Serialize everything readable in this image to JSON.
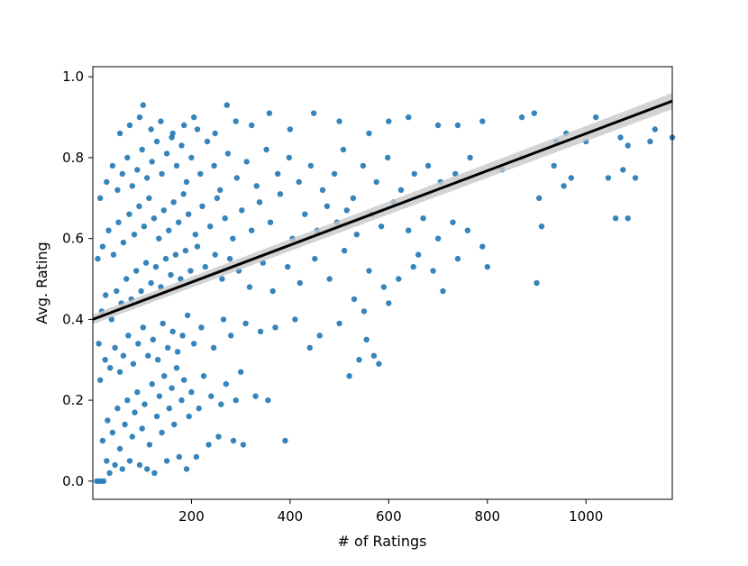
{
  "chart_data": {
    "type": "scatter",
    "title": "",
    "xlabel": "# of Ratings",
    "ylabel": "Avg. Rating",
    "xlim": [
      0,
      1175
    ],
    "ylim": [
      -0.045,
      1.025
    ],
    "xticks": [
      200,
      400,
      600,
      800,
      1000
    ],
    "yticks": [
      0.0,
      0.2,
      0.4,
      0.6,
      0.8,
      1.0
    ],
    "xtick_labels": [
      "200",
      "400",
      "600",
      "800",
      "1000"
    ],
    "ytick_labels": [
      "0.0",
      "0.2",
      "0.4",
      "0.6",
      "0.8",
      "1.0"
    ],
    "grid": false,
    "legend": "none",
    "point_color": "#1f77b4",
    "fit_color": "#000000",
    "ci_color": "#c8c8c8",
    "regression": {
      "x": [
        0,
        1175
      ],
      "y": [
        0.4,
        0.94
      ],
      "ci_half_width": [
        0.012,
        0.02
      ]
    },
    "points": [
      [
        8,
        0.0
      ],
      [
        15,
        0.0
      ],
      [
        22,
        0.0
      ],
      [
        34,
        0.02
      ],
      [
        28,
        0.05
      ],
      [
        45,
        0.04
      ],
      [
        60,
        0.03
      ],
      [
        75,
        0.05
      ],
      [
        95,
        0.04
      ],
      [
        110,
        0.03
      ],
      [
        125,
        0.02
      ],
      [
        150,
        0.05
      ],
      [
        175,
        0.06
      ],
      [
        190,
        0.03
      ],
      [
        210,
        0.06
      ],
      [
        235,
        0.09
      ],
      [
        255,
        0.11
      ],
      [
        285,
        0.1
      ],
      [
        305,
        0.09
      ],
      [
        390,
        0.1
      ],
      [
        20,
        0.1
      ],
      [
        30,
        0.15
      ],
      [
        40,
        0.12
      ],
      [
        50,
        0.18
      ],
      [
        55,
        0.08
      ],
      [
        65,
        0.14
      ],
      [
        70,
        0.2
      ],
      [
        80,
        0.11
      ],
      [
        85,
        0.17
      ],
      [
        90,
        0.22
      ],
      [
        100,
        0.13
      ],
      [
        105,
        0.19
      ],
      [
        115,
        0.09
      ],
      [
        120,
        0.24
      ],
      [
        130,
        0.16
      ],
      [
        135,
        0.21
      ],
      [
        140,
        0.12
      ],
      [
        145,
        0.26
      ],
      [
        155,
        0.18
      ],
      [
        160,
        0.23
      ],
      [
        165,
        0.14
      ],
      [
        170,
        0.28
      ],
      [
        180,
        0.2
      ],
      [
        185,
        0.25
      ],
      [
        195,
        0.16
      ],
      [
        200,
        0.22
      ],
      [
        215,
        0.18
      ],
      [
        225,
        0.26
      ],
      [
        240,
        0.21
      ],
      [
        260,
        0.19
      ],
      [
        270,
        0.24
      ],
      [
        290,
        0.2
      ],
      [
        300,
        0.27
      ],
      [
        330,
        0.21
      ],
      [
        355,
        0.2
      ],
      [
        440,
        0.33
      ],
      [
        520,
        0.26
      ],
      [
        540,
        0.3
      ],
      [
        570,
        0.31
      ],
      [
        580,
        0.29
      ],
      [
        555,
        0.35
      ],
      [
        15,
        0.25
      ],
      [
        25,
        0.3
      ],
      [
        35,
        0.28
      ],
      [
        45,
        0.33
      ],
      [
        55,
        0.27
      ],
      [
        62,
        0.31
      ],
      [
        72,
        0.36
      ],
      [
        82,
        0.29
      ],
      [
        92,
        0.34
      ],
      [
        102,
        0.38
      ],
      [
        112,
        0.31
      ],
      [
        122,
        0.35
      ],
      [
        132,
        0.3
      ],
      [
        142,
        0.39
      ],
      [
        152,
        0.33
      ],
      [
        162,
        0.37
      ],
      [
        172,
        0.32
      ],
      [
        182,
        0.36
      ],
      [
        192,
        0.41
      ],
      [
        205,
        0.34
      ],
      [
        220,
        0.38
      ],
      [
        245,
        0.33
      ],
      [
        265,
        0.4
      ],
      [
        280,
        0.36
      ],
      [
        310,
        0.39
      ],
      [
        340,
        0.37
      ],
      [
        370,
        0.38
      ],
      [
        410,
        0.4
      ],
      [
        460,
        0.36
      ],
      [
        500,
        0.39
      ],
      [
        550,
        0.42
      ],
      [
        600,
        0.44
      ],
      [
        12,
        0.34
      ],
      [
        18,
        0.42
      ],
      [
        26,
        0.46
      ],
      [
        38,
        0.4
      ],
      [
        48,
        0.47
      ],
      [
        58,
        0.44
      ],
      [
        68,
        0.5
      ],
      [
        78,
        0.45
      ],
      [
        88,
        0.52
      ],
      [
        98,
        0.47
      ],
      [
        108,
        0.54
      ],
      [
        118,
        0.49
      ],
      [
        128,
        0.53
      ],
      [
        138,
        0.48
      ],
      [
        148,
        0.55
      ],
      [
        158,
        0.51
      ],
      [
        168,
        0.56
      ],
      [
        178,
        0.5
      ],
      [
        188,
        0.57
      ],
      [
        198,
        0.52
      ],
      [
        212,
        0.58
      ],
      [
        228,
        0.53
      ],
      [
        248,
        0.56
      ],
      [
        262,
        0.5
      ],
      [
        278,
        0.55
      ],
      [
        296,
        0.52
      ],
      [
        318,
        0.48
      ],
      [
        345,
        0.54
      ],
      [
        365,
        0.47
      ],
      [
        395,
        0.53
      ],
      [
        420,
        0.49
      ],
      [
        450,
        0.55
      ],
      [
        480,
        0.5
      ],
      [
        510,
        0.57
      ],
      [
        530,
        0.45
      ],
      [
        560,
        0.52
      ],
      [
        590,
        0.48
      ],
      [
        620,
        0.5
      ],
      [
        650,
        0.53
      ],
      [
        710,
        0.47
      ],
      [
        690,
        0.52
      ],
      [
        660,
        0.56
      ],
      [
        740,
        0.55
      ],
      [
        800,
        0.53
      ],
      [
        900,
        0.49
      ],
      [
        10,
        0.55
      ],
      [
        20,
        0.58
      ],
      [
        32,
        0.62
      ],
      [
        42,
        0.56
      ],
      [
        52,
        0.64
      ],
      [
        62,
        0.59
      ],
      [
        74,
        0.66
      ],
      [
        84,
        0.61
      ],
      [
        94,
        0.68
      ],
      [
        104,
        0.63
      ],
      [
        114,
        0.7
      ],
      [
        124,
        0.65
      ],
      [
        134,
        0.6
      ],
      [
        144,
        0.67
      ],
      [
        154,
        0.62
      ],
      [
        164,
        0.69
      ],
      [
        174,
        0.64
      ],
      [
        184,
        0.71
      ],
      [
        194,
        0.66
      ],
      [
        208,
        0.61
      ],
      [
        222,
        0.68
      ],
      [
        238,
        0.63
      ],
      [
        252,
        0.7
      ],
      [
        268,
        0.65
      ],
      [
        284,
        0.6
      ],
      [
        302,
        0.67
      ],
      [
        322,
        0.62
      ],
      [
        338,
        0.69
      ],
      [
        360,
        0.64
      ],
      [
        380,
        0.71
      ],
      [
        405,
        0.6
      ],
      [
        430,
        0.66
      ],
      [
        455,
        0.62
      ],
      [
        475,
        0.68
      ],
      [
        495,
        0.64
      ],
      [
        515,
        0.67
      ],
      [
        535,
        0.61
      ],
      [
        565,
        0.66
      ],
      [
        585,
        0.63
      ],
      [
        610,
        0.69
      ],
      [
        640,
        0.62
      ],
      [
        670,
        0.65
      ],
      [
        700,
        0.6
      ],
      [
        730,
        0.64
      ],
      [
        760,
        0.62
      ],
      [
        790,
        0.58
      ],
      [
        910,
        0.63
      ],
      [
        1060,
        0.65
      ],
      [
        1085,
        0.65
      ],
      [
        15,
        0.7
      ],
      [
        28,
        0.74
      ],
      [
        40,
        0.78
      ],
      [
        50,
        0.72
      ],
      [
        60,
        0.76
      ],
      [
        70,
        0.8
      ],
      [
        80,
        0.73
      ],
      [
        90,
        0.77
      ],
      [
        100,
        0.82
      ],
      [
        110,
        0.75
      ],
      [
        120,
        0.79
      ],
      [
        130,
        0.84
      ],
      [
        140,
        0.76
      ],
      [
        150,
        0.81
      ],
      [
        160,
        0.85
      ],
      [
        170,
        0.78
      ],
      [
        180,
        0.83
      ],
      [
        190,
        0.74
      ],
      [
        200,
        0.8
      ],
      [
        218,
        0.76
      ],
      [
        232,
        0.84
      ],
      [
        246,
        0.78
      ],
      [
        258,
        0.72
      ],
      [
        274,
        0.81
      ],
      [
        292,
        0.75
      ],
      [
        312,
        0.79
      ],
      [
        332,
        0.73
      ],
      [
        352,
        0.82
      ],
      [
        375,
        0.76
      ],
      [
        398,
        0.8
      ],
      [
        418,
        0.74
      ],
      [
        442,
        0.78
      ],
      [
        466,
        0.72
      ],
      [
        490,
        0.76
      ],
      [
        508,
        0.82
      ],
      [
        528,
        0.7
      ],
      [
        548,
        0.78
      ],
      [
        575,
        0.74
      ],
      [
        598,
        0.8
      ],
      [
        625,
        0.72
      ],
      [
        652,
        0.76
      ],
      [
        680,
        0.78
      ],
      [
        705,
        0.74
      ],
      [
        735,
        0.76
      ],
      [
        765,
        0.8
      ],
      [
        830,
        0.77
      ],
      [
        870,
        0.8
      ],
      [
        905,
        0.7
      ],
      [
        935,
        0.78
      ],
      [
        955,
        0.73
      ],
      [
        970,
        0.75
      ],
      [
        1045,
        0.75
      ],
      [
        1075,
        0.77
      ],
      [
        1100,
        0.75
      ],
      [
        55,
        0.86
      ],
      [
        75,
        0.88
      ],
      [
        95,
        0.9
      ],
      [
        102,
        0.93
      ],
      [
        118,
        0.87
      ],
      [
        138,
        0.89
      ],
      [
        162,
        0.86
      ],
      [
        185,
        0.88
      ],
      [
        205,
        0.9
      ],
      [
        212,
        0.87
      ],
      [
        248,
        0.86
      ],
      [
        272,
        0.93
      ],
      [
        290,
        0.89
      ],
      [
        322,
        0.88
      ],
      [
        358,
        0.91
      ],
      [
        400,
        0.87
      ],
      [
        448,
        0.91
      ],
      [
        500,
        0.89
      ],
      [
        560,
        0.86
      ],
      [
        600,
        0.89
      ],
      [
        640,
        0.9
      ],
      [
        700,
        0.88
      ],
      [
        740,
        0.88
      ],
      [
        790,
        0.89
      ],
      [
        870,
        0.9
      ],
      [
        895,
        0.91
      ],
      [
        940,
        0.84
      ],
      [
        1020,
        0.9
      ],
      [
        1070,
        0.85
      ],
      [
        1130,
        0.84
      ],
      [
        1140,
        0.87
      ],
      [
        1175,
        0.85
      ],
      [
        1085,
        0.83
      ],
      [
        1000,
        0.84
      ],
      [
        960,
        0.86
      ]
    ]
  }
}
